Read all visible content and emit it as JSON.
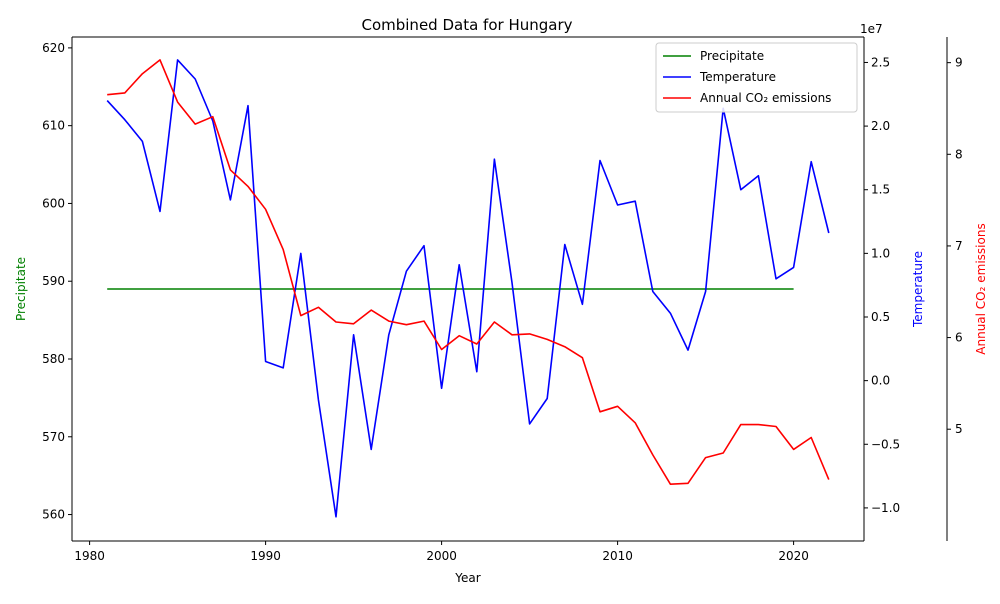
{
  "chart_data": {
    "type": "line",
    "title": "Combined Data for Hungary",
    "xlabel": "Year",
    "xlim": [
      1979,
      2024
    ],
    "x_ticks": [
      1980,
      1990,
      2000,
      2010,
      2020
    ],
    "axes": {
      "left": {
        "label": "Precipitate",
        "color": "#008000",
        "ylim": [
          556.6,
          621.4
        ],
        "ticks": [
          560,
          570,
          580,
          590,
          600,
          610,
          620
        ]
      },
      "middle": {
        "label": "Temperature",
        "color": "#0000ff",
        "offset_label": "1e7",
        "ylim": [
          -12.6,
          27.0
        ],
        "ticks": [
          -10,
          -5,
          0,
          5,
          10,
          15,
          20,
          25
        ],
        "tick_labels": [
          "−1.0",
          "−0.5",
          "0.0",
          "0.5",
          "1.0",
          "1.5",
          "2.0",
          "2.5"
        ]
      },
      "right": {
        "label": "Annual CO₂ emissions",
        "color": "#ff0000",
        "ylim": [
          3.78,
          9.28
        ],
        "ticks": [
          5,
          6,
          7,
          8,
          9
        ]
      }
    },
    "series": [
      {
        "name": "Precipitate",
        "axis": "left",
        "color": "#008000",
        "x": [
          1981,
          2020
        ],
        "values": [
          589,
          589
        ]
      },
      {
        "name": "Temperature",
        "axis": "middle",
        "color": "#0000ff",
        "x": [
          1981,
          1982,
          1983,
          1984,
          1985,
          1986,
          1987,
          1988,
          1989,
          1990,
          1991,
          1992,
          1993,
          1994,
          1995,
          1996,
          1997,
          1998,
          1999,
          2000,
          2001,
          2002,
          2003,
          2004,
          2005,
          2006,
          2007,
          2008,
          2009,
          2010,
          2011,
          2012,
          2013,
          2014,
          2015,
          2016,
          2017,
          2018,
          2019,
          2020,
          2021,
          2022
        ],
        "values": [
          22.0,
          20.5,
          18.8,
          13.3,
          25.2,
          23.7,
          20.4,
          14.2,
          21.6,
          1.5,
          1.0,
          10.0,
          -1.5,
          -10.7,
          3.6,
          -5.4,
          3.6,
          8.6,
          10.6,
          -0.6,
          9.1,
          0.7,
          17.4,
          7.7,
          -3.4,
          -1.4,
          10.7,
          6.0,
          17.3,
          13.8,
          14.1,
          7.0,
          5.3,
          2.4,
          7.0,
          21.4,
          15.0,
          16.1,
          8.0,
          8.9,
          17.2,
          11.6
        ]
      },
      {
        "name": "Annual CO₂ emissions",
        "axis": "right",
        "color": "#ff0000",
        "x": [
          1981,
          1982,
          1983,
          1984,
          1985,
          1986,
          1987,
          1988,
          1989,
          1990,
          1991,
          1992,
          1993,
          1994,
          1995,
          1996,
          1997,
          1998,
          1999,
          2000,
          2001,
          2002,
          2003,
          2004,
          2005,
          2006,
          2007,
          2008,
          2009,
          2010,
          2011,
          2012,
          2013,
          2014,
          2015,
          2016,
          2017,
          2018,
          2019,
          2020,
          2021,
          2022
        ],
        "values": [
          8.65,
          8.67,
          8.88,
          9.03,
          8.57,
          8.33,
          8.41,
          7.83,
          7.65,
          7.4,
          6.96,
          6.24,
          6.33,
          6.17,
          6.15,
          6.3,
          6.18,
          6.14,
          6.18,
          5.87,
          6.02,
          5.93,
          6.17,
          6.03,
          6.04,
          5.98,
          5.9,
          5.78,
          5.19,
          5.25,
          5.07,
          4.72,
          4.4,
          4.41,
          4.69,
          4.74,
          5.05,
          5.05,
          5.03,
          4.78,
          4.91,
          4.45
        ]
      }
    ],
    "legend": {
      "position": "top-right"
    }
  }
}
